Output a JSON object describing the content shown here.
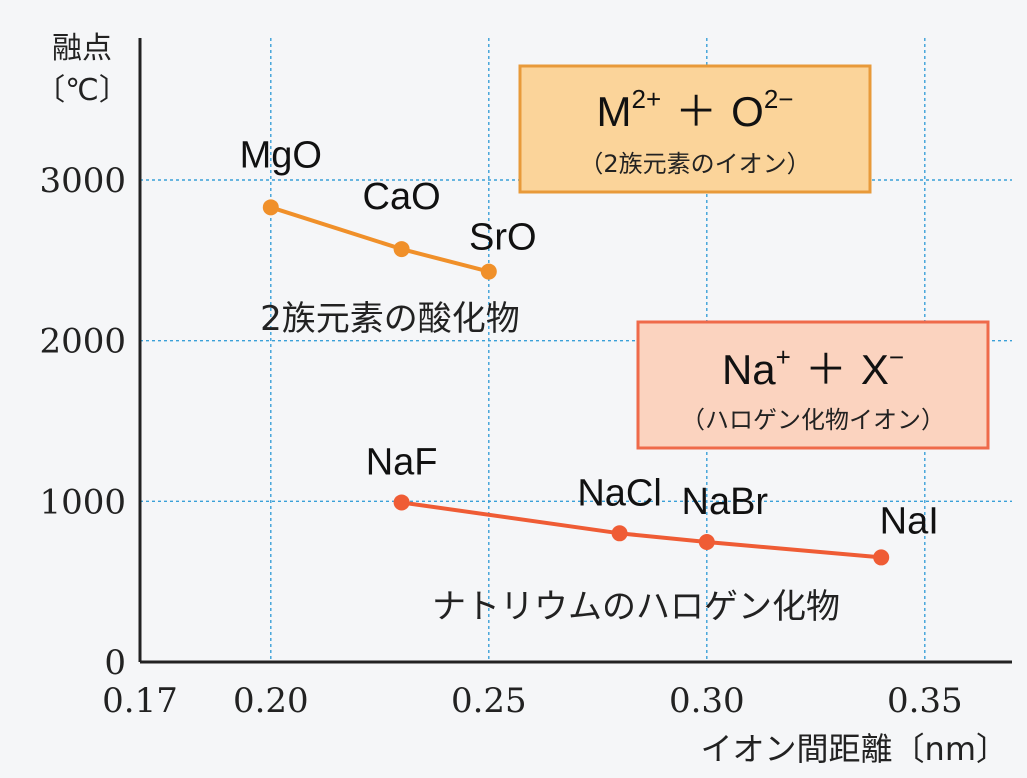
{
  "chart_data": {
    "type": "line",
    "y_axis_label_line1": "融点",
    "y_axis_label_line2": "〔℃〕",
    "x_axis_label": "イオン間距離〔nm〕",
    "xlim": [
      0.17,
      0.37
    ],
    "ylim": [
      0,
      3000
    ],
    "x_ticks": [
      "0.17",
      "0.20",
      "0.25",
      "0.30",
      "0.35"
    ],
    "y_ticks": [
      "0",
      "1000",
      "2000",
      "3000"
    ],
    "grid": true,
    "series": [
      {
        "group_label": "2族元素の酸化物",
        "color": "#f0902a",
        "points": [
          {
            "label": "MgO",
            "x": 0.2,
            "y": 2830
          },
          {
            "label": "CaO",
            "x": 0.23,
            "y": 2570
          },
          {
            "label": "SrO",
            "x": 0.25,
            "y": 2430
          }
        ],
        "box": {
          "main_left": "M",
          "main_left_sup": "2+",
          "plus": "＋",
          "main_right": "O",
          "main_right_sup": "2−",
          "sub": "（2族元素のイオン）",
          "fill": "#fbd49a",
          "stroke": "#e89a3a"
        }
      },
      {
        "group_label": "ナトリウムのハロゲン化物",
        "color": "#ef5c35",
        "points": [
          {
            "label": "NaF",
            "x": 0.23,
            "y": 993
          },
          {
            "label": "NaCl",
            "x": 0.28,
            "y": 801
          },
          {
            "label": "NaBr",
            "x": 0.3,
            "y": 747
          },
          {
            "label": "NaI",
            "x": 0.34,
            "y": 651
          }
        ],
        "box": {
          "main_left": "Na",
          "main_left_sup": "+",
          "plus": "＋",
          "main_right": "X",
          "main_right_sup": "−",
          "sub": "（ハロゲン化物イオン）",
          "fill": "#fbd3bf",
          "stroke": "#ef6a4a"
        }
      }
    ]
  }
}
